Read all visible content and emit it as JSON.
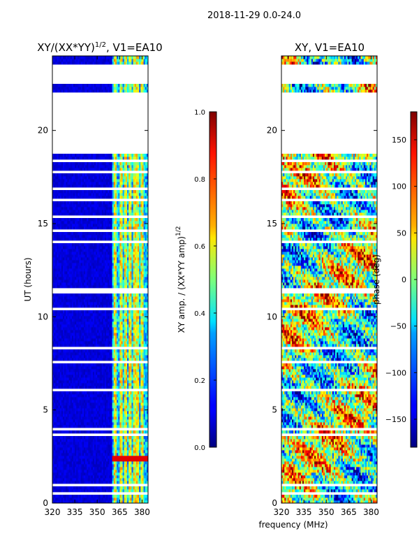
{
  "figure_title": "2018-11-29 0.0-24.0",
  "xlabel_shared": "frequency (MHz)",
  "chart_data": [
    {
      "type": "heatmap",
      "title": "XY/(XX*YY)",
      "title_sup": "1/2",
      "title_suffix": ", V1=EA10",
      "xlabel": "",
      "ylabel": "UT (hours)",
      "xlim": [
        320,
        384
      ],
      "ylim": [
        0,
        24
      ],
      "xticks": [
        320,
        335,
        350,
        365,
        380
      ],
      "yticks": [
        0,
        5,
        10,
        15,
        20
      ],
      "colorbar": {
        "label": "XY amp. / (XX*YY amp)",
        "label_sup": "1/2",
        "range": [
          0.0,
          1.0
        ],
        "ticks": [
          "0.0",
          "0.2",
          "0.4",
          "0.6",
          "0.8",
          "1.0"
        ],
        "tick_values": [
          0.0,
          0.2,
          0.4,
          0.6,
          0.8,
          1.0
        ]
      },
      "colormap": "jet"
    },
    {
      "type": "heatmap",
      "title": "XY, V1=EA10",
      "xlabel": "frequency (MHz)",
      "ylabel": "",
      "xlim": [
        320,
        384
      ],
      "ylim": [
        0,
        24
      ],
      "xticks": [
        320,
        335,
        350,
        365,
        380
      ],
      "yticks": [
        0,
        5,
        10,
        15,
        20
      ],
      "colorbar": {
        "label": "phase (deg)",
        "range": [
          -180,
          180
        ],
        "ticks": [
          "150",
          "100",
          "50",
          "0",
          "−50",
          "−100",
          "−150"
        ],
        "tick_values": [
          150,
          100,
          50,
          0,
          -50,
          -100,
          -150
        ]
      },
      "colormap": "jet"
    }
  ],
  "data_gaps_hours": [
    [
      0.45,
      0.55
    ],
    [
      0.9,
      1.05
    ],
    [
      2.8,
      2.9
    ],
    [
      3.55,
      3.7
    ],
    [
      3.9,
      4.05
    ],
    [
      4.6,
      4.7
    ],
    [
      6.05,
      6.15
    ],
    [
      7.5,
      7.6
    ],
    [
      8.25,
      8.35
    ],
    [
      9.55,
      9.65
    ],
    [
      10.4,
      10.5
    ],
    [
      11.3,
      11.5
    ],
    [
      13.95,
      14.05
    ],
    [
      14.55,
      14.65
    ],
    [
      15.35,
      15.45
    ],
    [
      16.15,
      16.3
    ],
    [
      16.85,
      16.95
    ],
    [
      17.75,
      17.85
    ],
    [
      18.3,
      18.45
    ],
    [
      18.8,
      22.0
    ],
    [
      22.45,
      23.5
    ]
  ],
  "rfi_channels_mhz": [
    362,
    366,
    369,
    372,
    375,
    377,
    380
  ]
}
